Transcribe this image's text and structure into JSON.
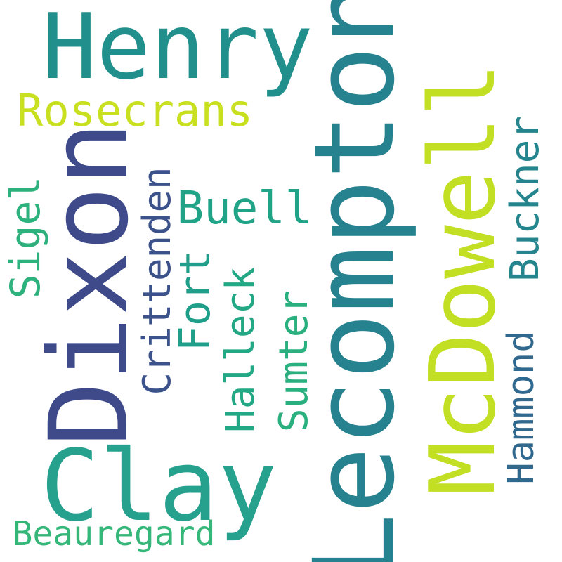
{
  "words": {
    "henry": {
      "text": "Henry",
      "color": "#21908d"
    },
    "lecompton": {
      "text": "Lecompton",
      "color": "#26828e"
    },
    "dixon": {
      "text": "Dixon",
      "color": "#3e4a89"
    },
    "mcdowell": {
      "text": "McDowell",
      "color": "#c2df23"
    },
    "clay": {
      "text": "Clay",
      "color": "#25a18e"
    },
    "rosecrans": {
      "text": "Rosecrans",
      "color": "#c8e020"
    },
    "buell": {
      "text": "Buell",
      "color": "#20a386"
    },
    "crittenden": {
      "text": "Crittenden",
      "color": "#3b528b"
    },
    "sigel": {
      "text": "Sigel",
      "color": "#2db27d"
    },
    "fort": {
      "text": "Fort",
      "color": "#1f9e89"
    },
    "halleck": {
      "text": "Halleck",
      "color": "#22a884"
    },
    "sumter": {
      "text": "Sumter",
      "color": "#2ab07f"
    },
    "buckner": {
      "text": "Buckner",
      "color": "#25858e"
    },
    "hammond": {
      "text": "Hammond",
      "color": "#31688e"
    },
    "beauregard": {
      "text": "Beauregard",
      "color": "#35b779"
    }
  }
}
